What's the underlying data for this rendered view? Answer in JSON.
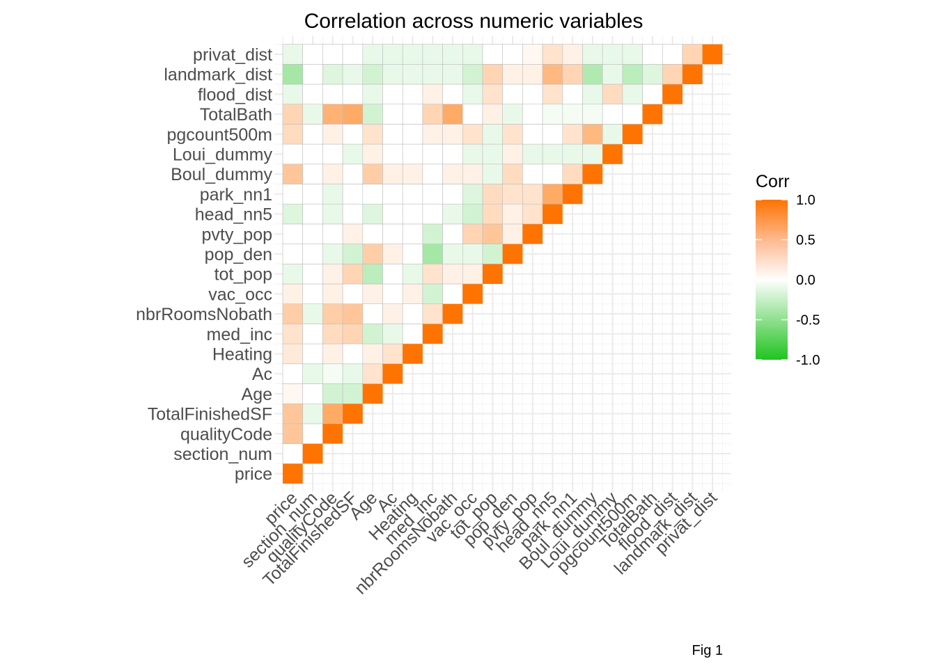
{
  "chart_data": {
    "type": "heatmap",
    "title": "Correlation across numeric variables",
    "caption": "Fig 1",
    "legend_title": "Corr",
    "legend_position": "right",
    "legend_ticks": [
      "1.0",
      "0.5",
      "0.0",
      "-0.5",
      "-1.0"
    ],
    "legend_tick_values": [
      1.0,
      0.5,
      0.0,
      -0.5,
      -1.0
    ],
    "scale": {
      "low": -1.0,
      "mid": 0.0,
      "high": 1.0,
      "low_color": "#1fc41f",
      "mid_color": "#ffffff",
      "high_color": "#ff7300"
    },
    "grid": true,
    "variables": [
      "price",
      "section_num",
      "qualityCode",
      "TotalFinishedSF",
      "Age",
      "Ac",
      "Heating",
      "med_inc",
      "nbrRoomsNobath",
      "vac_occ",
      "tot_pop",
      "pop_den",
      "pvty_pop",
      "head_nn5",
      "park_nn1",
      "Boul_dummy",
      "Loui_dummy",
      "pgcount500m",
      "TotalBath",
      "flood_dist",
      "landmark_dist",
      "privat_dist"
    ],
    "matrix": [
      [
        1.0
      ],
      [
        0.0,
        1.0
      ],
      [
        0.4,
        0.0,
        1.0
      ],
      [
        0.4,
        -0.1,
        0.6,
        1.0
      ],
      [
        0.05,
        0.0,
        -0.2,
        -0.2,
        1.0
      ],
      [
        0.0,
        -0.1,
        -0.05,
        -0.1,
        0.2,
        1.0
      ],
      [
        0.15,
        0.0,
        0.1,
        0.0,
        0.1,
        0.2,
        1.0
      ],
      [
        0.2,
        0.0,
        0.25,
        0.3,
        -0.2,
        -0.1,
        0.0,
        1.0
      ],
      [
        0.35,
        -0.1,
        0.35,
        0.4,
        0.0,
        0.1,
        0.0,
        0.2,
        1.0
      ],
      [
        0.1,
        0.0,
        0.1,
        0.0,
        0.1,
        0.0,
        0.1,
        -0.2,
        0.0,
        1.0
      ],
      [
        -0.1,
        0.0,
        0.1,
        0.3,
        -0.3,
        0.0,
        -0.1,
        0.2,
        0.1,
        0.1,
        1.0
      ],
      [
        0.0,
        0.0,
        -0.1,
        -0.2,
        0.35,
        0.1,
        0.0,
        -0.4,
        -0.1,
        -0.1,
        -0.2,
        1.0
      ],
      [
        0.0,
        0.0,
        0.0,
        0.1,
        0.0,
        0.0,
        0.0,
        -0.2,
        0.0,
        0.3,
        0.4,
        0.1,
        1.0
      ],
      [
        -0.15,
        0.0,
        -0.1,
        0.0,
        -0.15,
        0.0,
        0.0,
        0.0,
        -0.1,
        -0.2,
        0.25,
        0.1,
        0.2,
        1.0
      ],
      [
        0.0,
        0.0,
        -0.1,
        0.0,
        0.0,
        0.0,
        0.0,
        0.0,
        0.0,
        -0.15,
        0.25,
        0.2,
        0.2,
        0.6,
        1.0
      ],
      [
        0.4,
        0.0,
        0.1,
        0.0,
        0.35,
        0.1,
        0.1,
        0.0,
        0.1,
        0.1,
        -0.1,
        0.25,
        0.0,
        0.0,
        0.25,
        1.0
      ],
      [
        0.0,
        0.0,
        0.0,
        -0.1,
        0.1,
        0.0,
        0.0,
        0.0,
        0.0,
        -0.1,
        -0.1,
        0.1,
        -0.1,
        -0.1,
        -0.1,
        -0.1,
        1.0
      ],
      [
        0.25,
        0.0,
        0.1,
        0.0,
        0.2,
        0.0,
        0.0,
        0.1,
        0.1,
        0.2,
        -0.1,
        0.2,
        0.0,
        0.0,
        0.2,
        0.5,
        -0.1,
        1.0
      ],
      [
        0.3,
        -0.1,
        0.55,
        0.6,
        -0.2,
        0.0,
        0.0,
        0.3,
        0.6,
        0.0,
        0.1,
        -0.1,
        0.0,
        -0.05,
        -0.05,
        -0.05,
        0.0,
        0.0,
        1.0
      ],
      [
        -0.1,
        0.0,
        0.0,
        0.0,
        -0.1,
        0.0,
        0.0,
        0.1,
        0.0,
        -0.1,
        0.2,
        0.0,
        0.0,
        0.2,
        0.0,
        -0.1,
        0.25,
        -0.1,
        0.0,
        1.0
      ],
      [
        -0.4,
        0.0,
        -0.15,
        -0.1,
        -0.2,
        -0.1,
        -0.1,
        -0.1,
        -0.1,
        -0.2,
        0.3,
        0.1,
        0.1,
        0.5,
        0.3,
        -0.35,
        -0.1,
        -0.3,
        -0.15,
        0.3,
        1.0
      ],
      [
        -0.1,
        0.0,
        0.0,
        0.0,
        -0.1,
        -0.1,
        -0.1,
        -0.1,
        -0.1,
        -0.1,
        0.0,
        0.0,
        0.05,
        0.2,
        0.1,
        -0.1,
        -0.1,
        -0.1,
        0.0,
        0.0,
        0.3,
        1.0
      ]
    ]
  }
}
